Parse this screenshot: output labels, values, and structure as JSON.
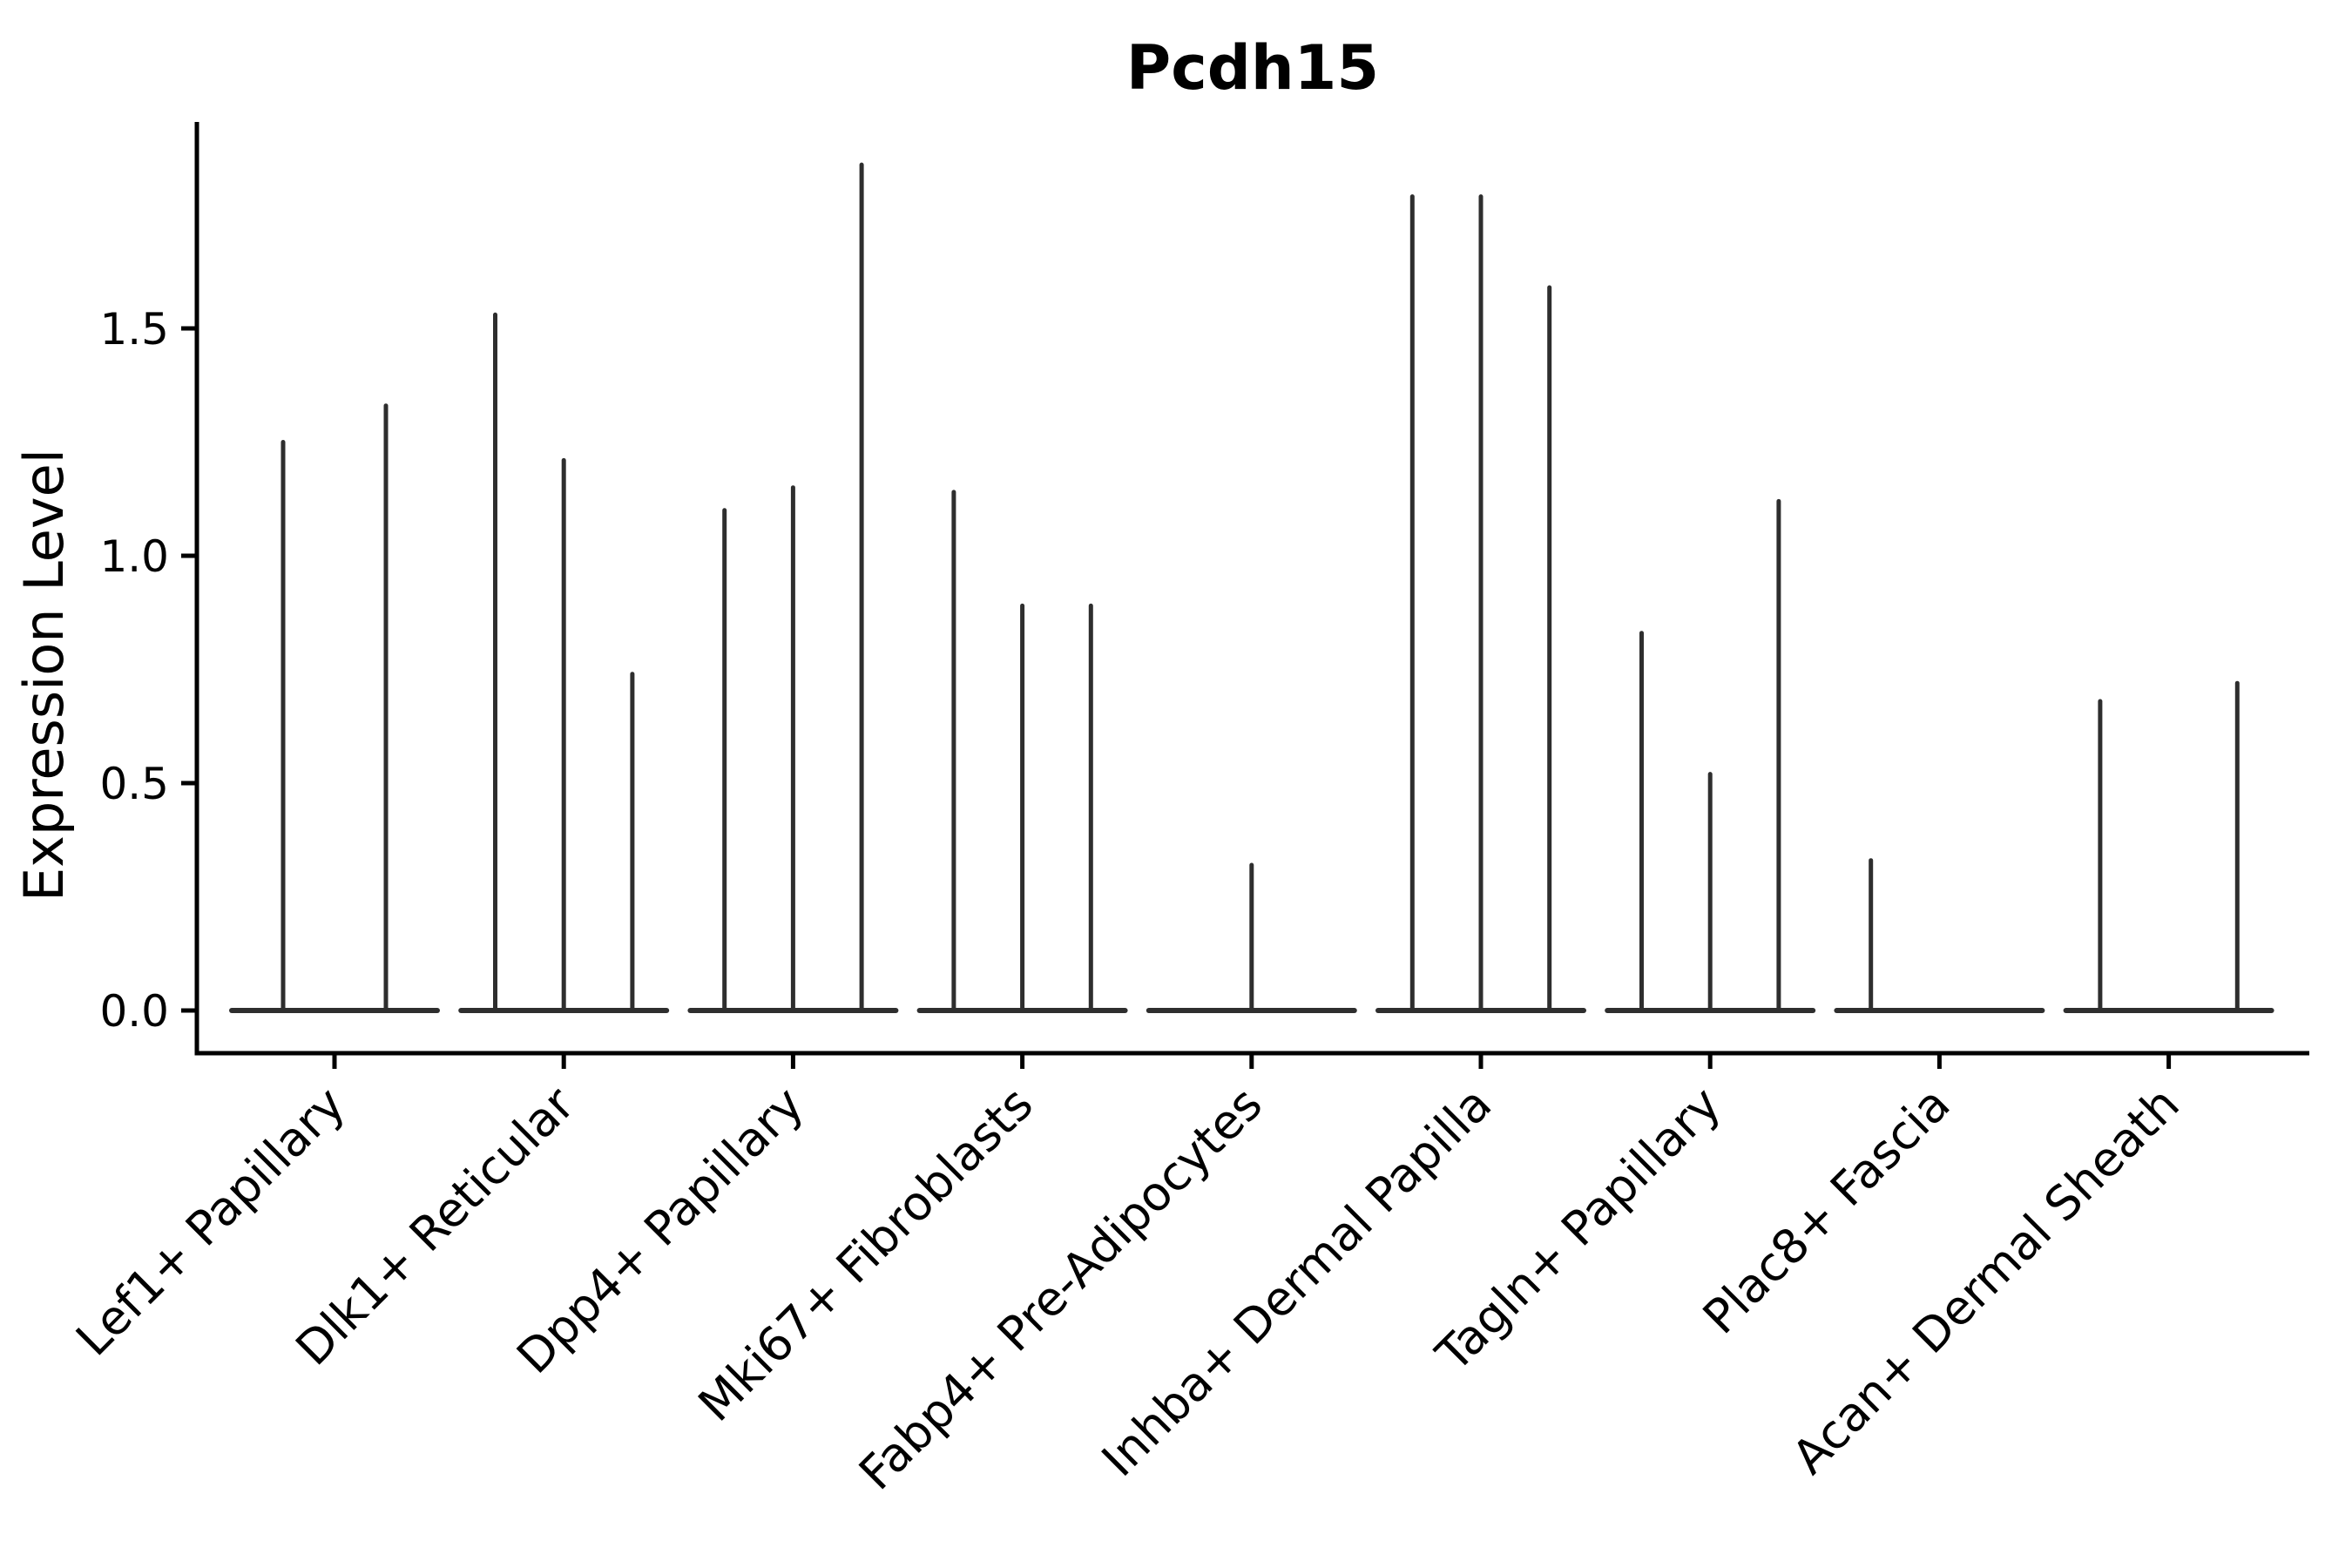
{
  "chart_data": {
    "type": "violin",
    "title": "Pcdh15",
    "xlabel": "",
    "ylabel": "Expression Level",
    "ylim": [
      -0.09,
      1.95
    ],
    "yticks": [
      0.0,
      0.5,
      1.0,
      1.5
    ],
    "ytick_labels": [
      "0.0",
      "0.5",
      "1.0",
      "1.5"
    ],
    "grid": false,
    "legend": "none",
    "categories": [
      "Lef1+ Papillary",
      "Dlk1+ Reticular",
      "Dpp4+ Papillary",
      "Mki67+ Fibroblasts",
      "Fabp4+ Pre-Adipocytes",
      "Inhba+ Dermal Papilla",
      "Tagln+ Papillary",
      "Plac8+ Fascia",
      "Acan+ Dermal Sheath"
    ],
    "groups": [
      {
        "label": "Lef1+ Papillary",
        "violin_max": [
          1.25,
          1.33
        ]
      },
      {
        "label": "Dlk1+ Reticular",
        "violin_max": [
          1.53,
          1.21,
          0.74
        ]
      },
      {
        "label": "Dpp4+ Papillary",
        "violin_max": [
          1.1,
          1.15,
          1.86
        ]
      },
      {
        "label": "Mki67+ Fibroblasts",
        "violin_max": [
          1.14,
          0.89,
          0.89
        ]
      },
      {
        "label": "Fabp4+ Pre-Adipocytes",
        "violin_max": [
          0,
          0.32,
          0
        ]
      },
      {
        "label": "Inhba+ Dermal Papilla",
        "violin_max": [
          1.79,
          1.79,
          1.59
        ]
      },
      {
        "label": "Tagln+ Papillary",
        "violin_max": [
          0.83,
          0.52,
          1.12
        ]
      },
      {
        "label": "Plac8+ Fascia",
        "violin_max": [
          0.33,
          0,
          0
        ]
      },
      {
        "label": "Acan+ Dermal Sheath",
        "violin_max": [
          0.68,
          0,
          0.72
        ]
      }
    ],
    "colors": {
      "violin": "#2e2e2e",
      "axis": "#000000",
      "text": "#000000",
      "background": "#ffffff"
    }
  }
}
